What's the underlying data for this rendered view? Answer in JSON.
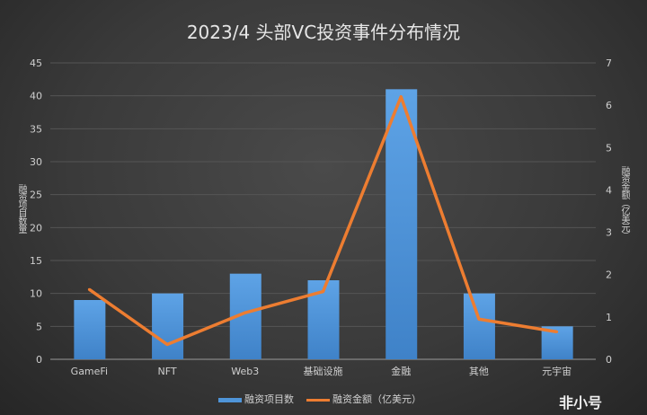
{
  "chart_data": {
    "type": "bar+line",
    "title": "2023/4 头部VC投资事件分布情况",
    "categories": [
      "GameFi",
      "NFT",
      "Web3",
      "基础设施",
      "金融",
      "其他",
      "元宇宙"
    ],
    "series": [
      {
        "name": "融资项目数",
        "type": "bar",
        "axis": "left",
        "color": "#4f95d9",
        "values": [
          9,
          10,
          13,
          12,
          41,
          10,
          5
        ]
      },
      {
        "name": "融资金额（亿美元）",
        "type": "line",
        "axis": "right",
        "color": "#ed7d31",
        "values": [
          1.65,
          0.35,
          1.1,
          1.6,
          6.2,
          0.95,
          0.65
        ]
      }
    ],
    "ylabel": "融资项目数量",
    "y2label": "融资金额（亿美元）",
    "ylim": [
      0,
      45
    ],
    "yticks": [
      0,
      5,
      10,
      15,
      20,
      25,
      30,
      35,
      40,
      45
    ],
    "y2lim": [
      0,
      7
    ],
    "y2ticks": [
      0,
      1,
      2,
      3,
      4,
      5,
      6,
      7
    ],
    "grid": true,
    "legend": "bottom"
  },
  "legend": {
    "bar": "融资项目数",
    "line": "融资金额（亿美元）"
  },
  "watermark": "非小号"
}
